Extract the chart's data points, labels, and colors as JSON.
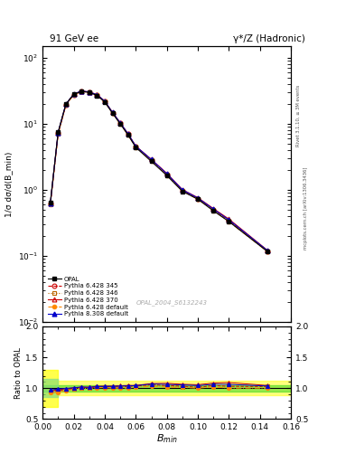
{
  "title_left": "91 GeV ee",
  "title_right": "γ*/Z (Hadronic)",
  "right_label_top": "Rivet 3.1.10, ≥ 3M events",
  "right_label_bot": "mcplots.cern.ch [arXiv:1306.3436]",
  "dataset_label": "OPAL_2004_S6132243",
  "ylabel": "1/σ dσ/d(B_min)",
  "ylabel_ratio": "Ratio to OPAL",
  "xlim": [
    0.0,
    0.16
  ],
  "ylim_main": [
    0.01,
    150
  ],
  "ylim_ratio": [
    0.5,
    2.0
  ],
  "x_data": [
    0.005,
    0.01,
    0.015,
    0.02,
    0.025,
    0.03,
    0.035,
    0.04,
    0.045,
    0.05,
    0.055,
    0.06,
    0.07,
    0.08,
    0.09,
    0.1,
    0.11,
    0.12,
    0.145
  ],
  "opal_y": [
    0.65,
    7.5,
    20.0,
    28.0,
    31.0,
    30.0,
    27.0,
    21.5,
    14.5,
    10.0,
    6.8,
    4.4,
    2.7,
    1.65,
    0.95,
    0.72,
    0.48,
    0.33,
    0.115
  ],
  "pythia_345_y": [
    0.62,
    7.2,
    19.5,
    27.8,
    31.2,
    30.2,
    27.5,
    22.0,
    14.8,
    10.2,
    7.0,
    4.55,
    2.85,
    1.72,
    0.98,
    0.73,
    0.5,
    0.34,
    0.118
  ],
  "pythia_346_y": [
    0.61,
    7.1,
    19.4,
    27.7,
    31.1,
    30.1,
    27.4,
    21.9,
    14.7,
    10.15,
    6.95,
    4.52,
    2.83,
    1.71,
    0.97,
    0.73,
    0.5,
    0.34,
    0.118
  ],
  "pythia_370_y": [
    0.62,
    7.3,
    19.8,
    28.1,
    31.5,
    30.5,
    27.8,
    22.2,
    15.0,
    10.4,
    7.1,
    4.6,
    2.9,
    1.78,
    1.01,
    0.76,
    0.52,
    0.36,
    0.12
  ],
  "pythia_default_y": [
    0.6,
    7.0,
    19.2,
    27.5,
    30.9,
    29.9,
    27.2,
    21.7,
    14.5,
    10.0,
    6.8,
    4.45,
    2.78,
    1.68,
    0.96,
    0.72,
    0.49,
    0.33,
    0.115
  ],
  "pythia8_y": [
    0.63,
    7.4,
    19.9,
    28.2,
    31.6,
    30.4,
    27.7,
    22.1,
    14.9,
    10.35,
    7.05,
    4.58,
    2.88,
    1.75,
    1.0,
    0.75,
    0.51,
    0.35,
    0.119
  ],
  "ratio_345": [
    0.95,
    0.96,
    0.975,
    0.993,
    1.006,
    1.007,
    1.019,
    1.023,
    1.021,
    1.02,
    1.029,
    1.034,
    1.056,
    1.042,
    1.032,
    1.014,
    1.042,
    1.03,
    1.026
  ],
  "ratio_346": [
    0.938,
    0.947,
    0.97,
    0.989,
    1.003,
    1.003,
    1.015,
    1.019,
    1.014,
    1.015,
    1.022,
    1.027,
    1.048,
    1.036,
    1.021,
    1.014,
    1.042,
    1.03,
    1.026
  ],
  "ratio_370": [
    0.954,
    0.973,
    0.99,
    1.004,
    1.016,
    1.017,
    1.03,
    1.033,
    1.034,
    1.04,
    1.044,
    1.045,
    1.074,
    1.079,
    1.063,
    1.056,
    1.083,
    1.091,
    1.043
  ],
  "ratio_default": [
    0.923,
    0.933,
    0.96,
    0.982,
    0.997,
    0.997,
    1.007,
    1.009,
    1.0,
    1.0,
    1.0,
    1.011,
    1.03,
    1.018,
    1.011,
    1.0,
    1.021,
    1.0,
    1.0
  ],
  "ratio_p8": [
    0.969,
    0.987,
    0.995,
    1.007,
    1.019,
    1.013,
    1.026,
    1.028,
    1.028,
    1.035,
    1.037,
    1.041,
    1.067,
    1.061,
    1.053,
    1.042,
    1.063,
    1.061,
    1.035
  ],
  "color_345": "#cc0000",
  "color_346": "#bb6600",
  "color_370": "#cc0000",
  "color_default": "#ff8800",
  "color_p8": "#0000cc",
  "color_opal": "#000000",
  "green_band": [
    0.95,
    1.05
  ],
  "yellow_band": [
    0.88,
    1.12
  ]
}
